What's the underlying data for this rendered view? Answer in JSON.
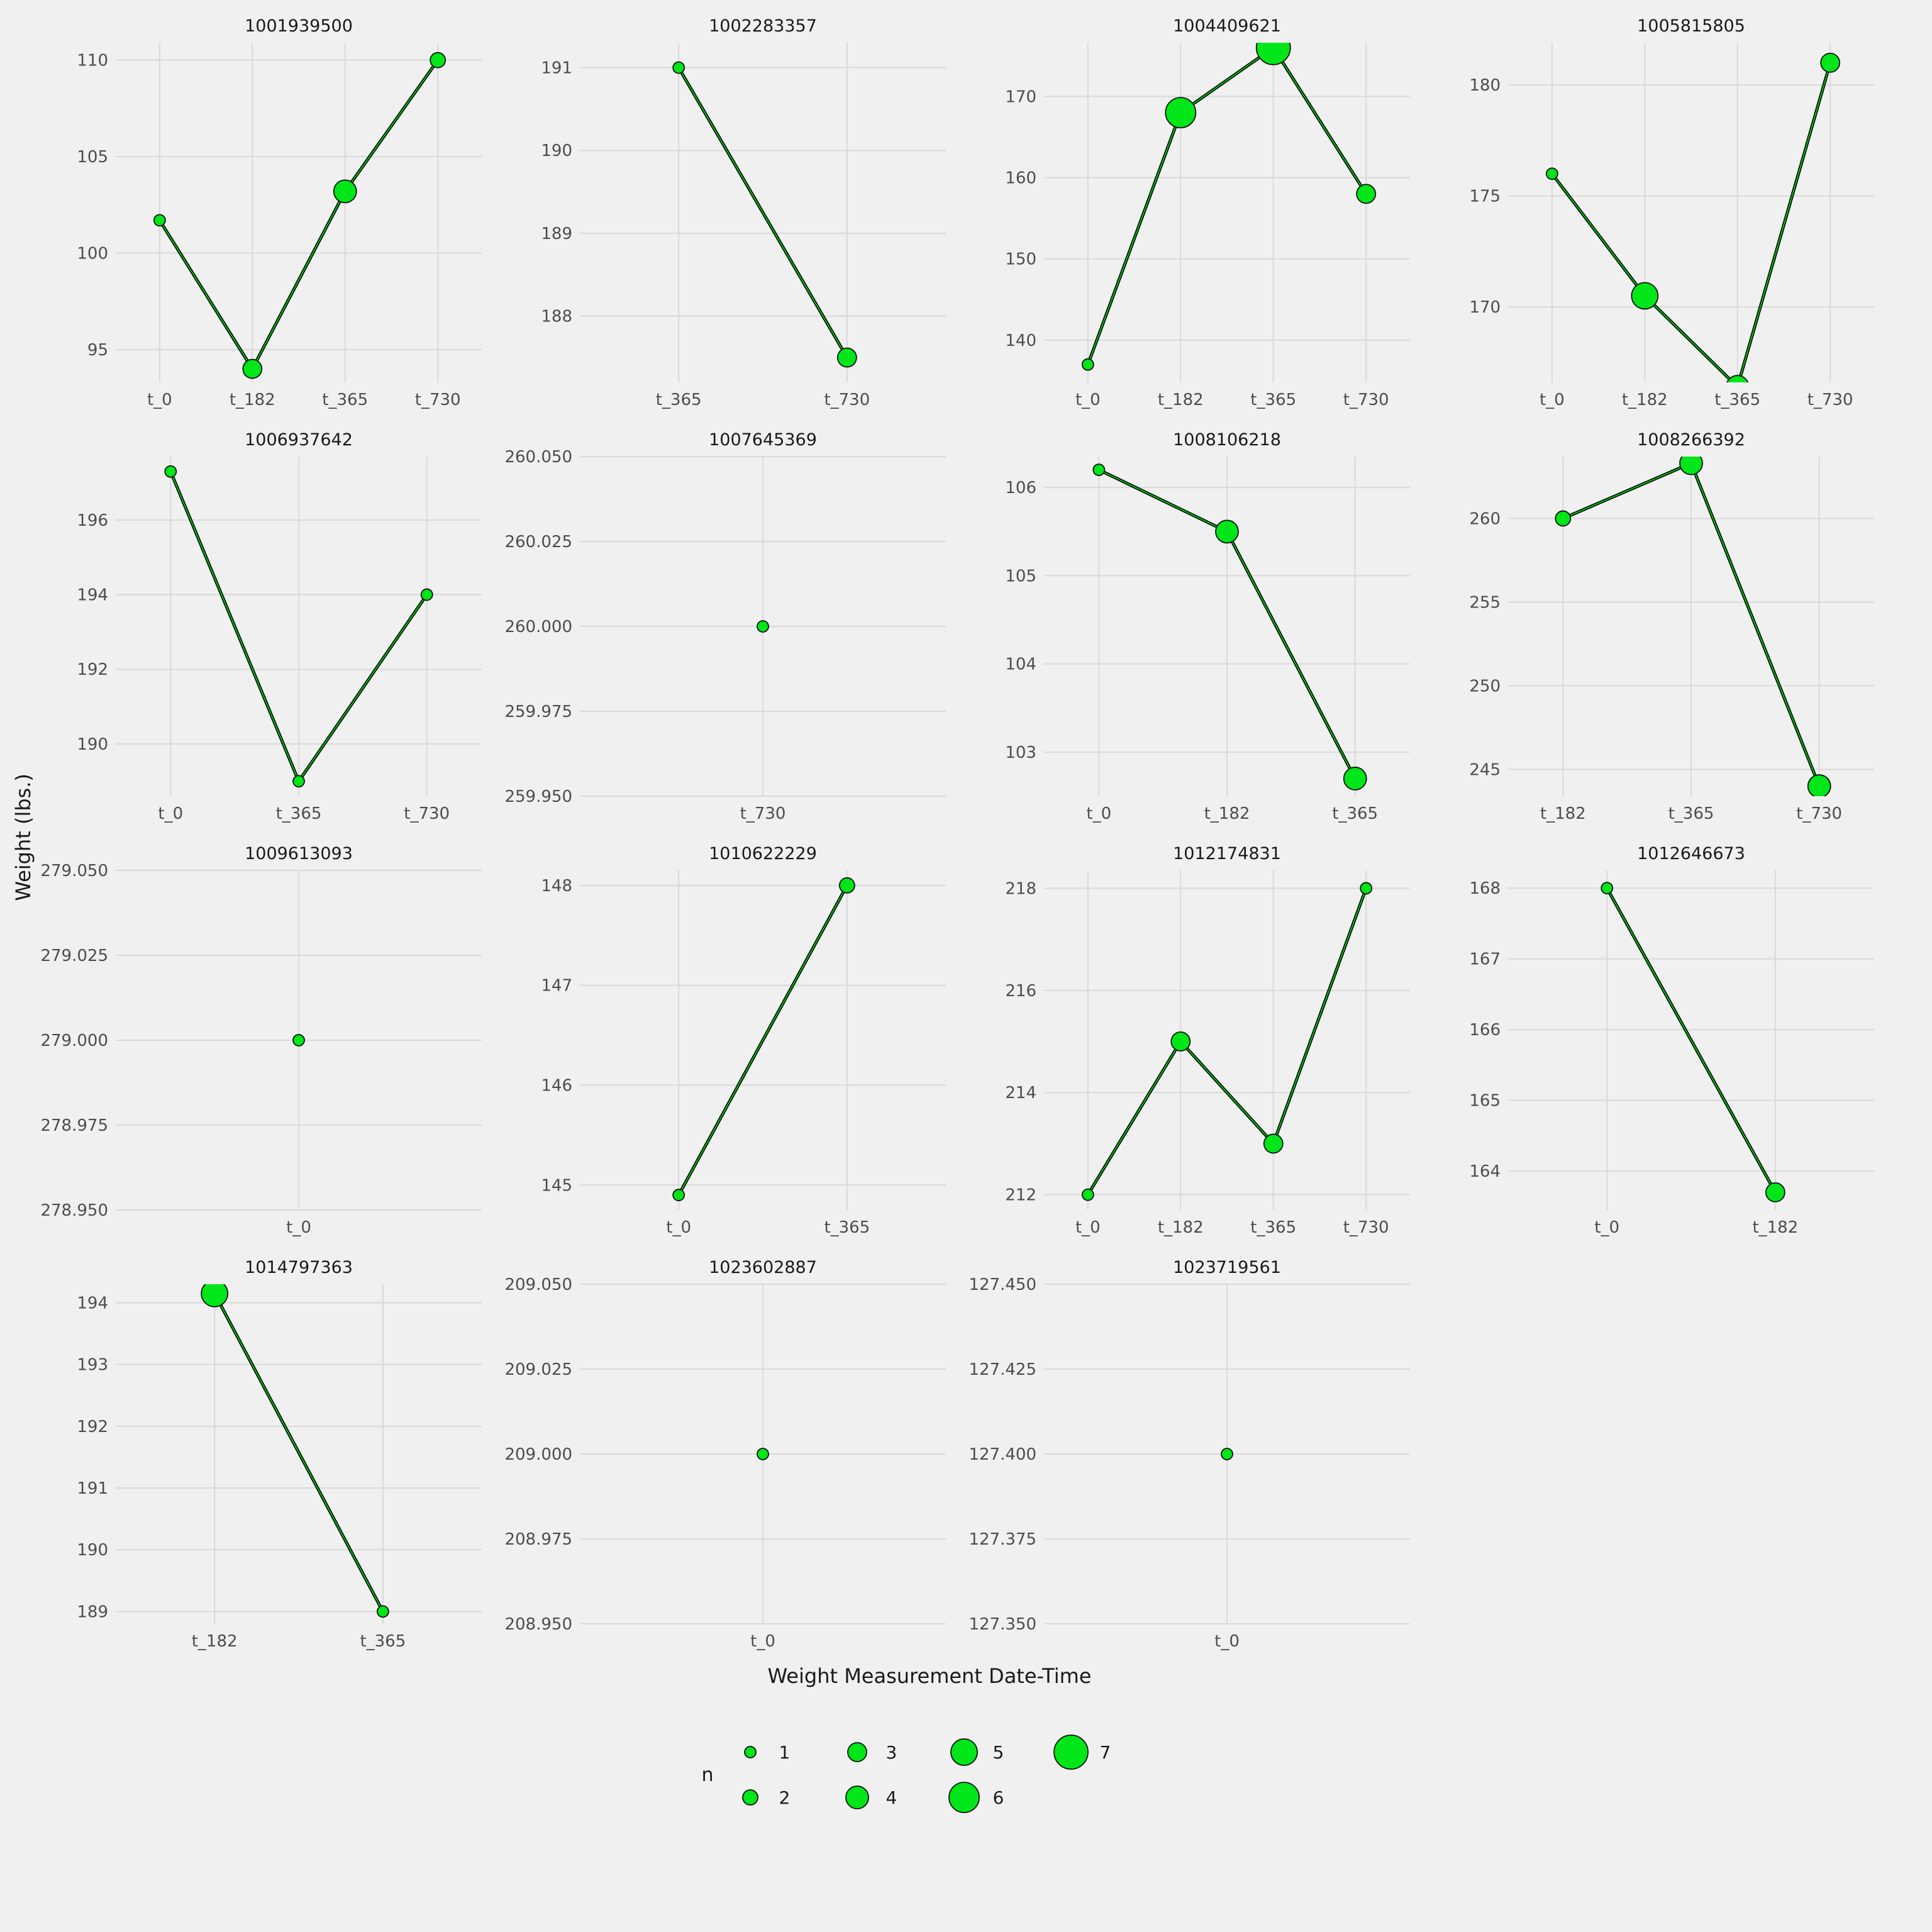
{
  "axis": {
    "x_title": "Weight Measurement Date-Time",
    "y_title": "Weight (lbs.)"
  },
  "legend": {
    "title": "n",
    "rows": [
      [
        1,
        3,
        5,
        7
      ],
      [
        2,
        4,
        6
      ]
    ]
  },
  "style": {
    "background": "#F0F0F0",
    "grid_color": "#D9D9D9",
    "tick_label_color": "#4D4D4D",
    "title_color": "#1A1A1A",
    "point_fill": "#00E619",
    "point_stroke": "#111111",
    "line_outer": "#000000",
    "line_inner": "#00BC14",
    "r_base": 6,
    "r_step": 3
  },
  "chart_data": {
    "type": "line",
    "x_variable": "Weight Measurement Date-Time",
    "y_variable": "Weight (lbs.)",
    "size_variable": "n",
    "facets": [
      {
        "title": "1001939500",
        "x_ticks": [
          "t_0",
          "t_182",
          "t_365",
          "t_730"
        ],
        "y_ticks": [
          "95",
          "100",
          "105",
          "110"
        ],
        "ylim": [
          93.3,
          110.9
        ],
        "points": [
          {
            "x": "t_0",
            "y": 101.7,
            "n": 1
          },
          {
            "x": "t_182",
            "y": 94,
            "n": 3
          },
          {
            "x": "t_365",
            "y": 103.2,
            "n": 4
          },
          {
            "x": "t_730",
            "y": 110,
            "n": 2
          }
        ]
      },
      {
        "title": "1002283357",
        "x_ticks": [
          "t_365",
          "t_730"
        ],
        "y_ticks": [
          "188",
          "189",
          "190",
          "191"
        ],
        "ylim": [
          187.2,
          191.3
        ],
        "points": [
          {
            "x": "t_365",
            "y": 191,
            "n": 1
          },
          {
            "x": "t_730",
            "y": 187.5,
            "n": 3
          }
        ]
      },
      {
        "title": "1004409621",
        "x_ticks": [
          "t_0",
          "t_182",
          "t_365",
          "t_730"
        ],
        "y_ticks": [
          "140",
          "150",
          "160",
          "170"
        ],
        "ylim": [
          134.8,
          176.6
        ],
        "points": [
          {
            "x": "t_0",
            "y": 137,
            "n": 1
          },
          {
            "x": "t_182",
            "y": 168,
            "n": 6
          },
          {
            "x": "t_365",
            "y": 176,
            "n": 7
          },
          {
            "x": "t_730",
            "y": 158,
            "n": 3
          }
        ]
      },
      {
        "title": "1005815805",
        "x_ticks": [
          "t_0",
          "t_182",
          "t_365",
          "t_730"
        ],
        "y_ticks": [
          "170",
          "175",
          "180"
        ],
        "ylim": [
          166.6,
          181.9
        ],
        "points": [
          {
            "x": "t_0",
            "y": 176,
            "n": 1
          },
          {
            "x": "t_182",
            "y": 170.5,
            "n": 5
          },
          {
            "x": "t_365",
            "y": 166.4,
            "n": 4
          },
          {
            "x": "t_730",
            "y": 181,
            "n": 3
          }
        ]
      },
      {
        "title": "1006937642",
        "x_ticks": [
          "t_0",
          "t_365",
          "t_730"
        ],
        "y_ticks": [
          "190",
          "192",
          "194",
          "196"
        ],
        "ylim": [
          188.6,
          197.7
        ],
        "points": [
          {
            "x": "t_0",
            "y": 197.3,
            "n": 1
          },
          {
            "x": "t_365",
            "y": 189,
            "n": 1
          },
          {
            "x": "t_730",
            "y": 194,
            "n": 1
          }
        ]
      },
      {
        "title": "1007645369",
        "x_ticks": [
          "t_730"
        ],
        "y_ticks": [
          "259.950",
          "259.975",
          "260.000",
          "260.025",
          "260.050"
        ],
        "ylim": [
          259.95,
          260.05
        ],
        "points": [
          {
            "x": "t_730",
            "y": 260,
            "n": 1
          }
        ]
      },
      {
        "title": "1008106218",
        "x_ticks": [
          "t_0",
          "t_182",
          "t_365"
        ],
        "y_ticks": [
          "103",
          "104",
          "105",
          "106"
        ],
        "ylim": [
          102.5,
          106.35
        ],
        "points": [
          {
            "x": "t_0",
            "y": 106.2,
            "n": 1
          },
          {
            "x": "t_182",
            "y": 105.5,
            "n": 4
          },
          {
            "x": "t_365",
            "y": 102.7,
            "n": 4
          }
        ]
      },
      {
        "title": "1008266392",
        "x_ticks": [
          "t_182",
          "t_365",
          "t_730"
        ],
        "y_ticks": [
          "245",
          "250",
          "255",
          "260"
        ],
        "ylim": [
          243.4,
          263.7
        ],
        "points": [
          {
            "x": "t_182",
            "y": 260,
            "n": 2
          },
          {
            "x": "t_365",
            "y": 263.3,
            "n": 4
          },
          {
            "x": "t_730",
            "y": 244,
            "n": 4
          }
        ]
      },
      {
        "title": "1009613093",
        "x_ticks": [
          "t_0"
        ],
        "y_ticks": [
          "278.950",
          "278.975",
          "279.000",
          "279.025",
          "279.050"
        ],
        "ylim": [
          278.95,
          279.05
        ],
        "points": [
          {
            "x": "t_0",
            "y": 279,
            "n": 1
          }
        ]
      },
      {
        "title": "1010622229",
        "x_ticks": [
          "t_0",
          "t_365"
        ],
        "y_ticks": [
          "145",
          "146",
          "147",
          "148"
        ],
        "ylim": [
          144.75,
          148.15
        ],
        "points": [
          {
            "x": "t_0",
            "y": 144.9,
            "n": 1
          },
          {
            "x": "t_365",
            "y": 148,
            "n": 2
          }
        ]
      },
      {
        "title": "1012174831",
        "x_ticks": [
          "t_0",
          "t_182",
          "t_365",
          "t_730"
        ],
        "y_ticks": [
          "212",
          "214",
          "216",
          "218"
        ],
        "ylim": [
          211.7,
          218.35
        ],
        "points": [
          {
            "x": "t_0",
            "y": 212,
            "n": 1
          },
          {
            "x": "t_182",
            "y": 215,
            "n": 3
          },
          {
            "x": "t_365",
            "y": 213,
            "n": 3
          },
          {
            "x": "t_730",
            "y": 218,
            "n": 1
          }
        ]
      },
      {
        "title": "1012646673",
        "x_ticks": [
          "t_0",
          "t_182"
        ],
        "y_ticks": [
          "164",
          "165",
          "166",
          "167",
          "168"
        ],
        "ylim": [
          163.45,
          168.25
        ],
        "points": [
          {
            "x": "t_0",
            "y": 168,
            "n": 1
          },
          {
            "x": "t_182",
            "y": 163.7,
            "n": 3
          }
        ]
      },
      {
        "title": "1014797363",
        "x_ticks": [
          "t_182",
          "t_365"
        ],
        "y_ticks": [
          "189",
          "190",
          "191",
          "192",
          "193",
          "194"
        ],
        "ylim": [
          188.8,
          194.3
        ],
        "points": [
          {
            "x": "t_182",
            "y": 194.15,
            "n": 5
          },
          {
            "x": "t_365",
            "y": 189,
            "n": 1
          }
        ]
      },
      {
        "title": "1023602887",
        "x_ticks": [
          "t_0"
        ],
        "y_ticks": [
          "208.950",
          "208.975",
          "209.000",
          "209.025",
          "209.050"
        ],
        "ylim": [
          208.95,
          209.05
        ],
        "points": [
          {
            "x": "t_0",
            "y": 209,
            "n": 1
          }
        ]
      },
      {
        "title": "1023719561",
        "x_ticks": [
          "t_0"
        ],
        "y_ticks": [
          "127.350",
          "127.375",
          "127.400",
          "127.425",
          "127.450"
        ],
        "ylim": [
          127.35,
          127.45
        ],
        "points": [
          {
            "x": "t_0",
            "y": 127.4,
            "n": 1
          }
        ]
      }
    ]
  }
}
